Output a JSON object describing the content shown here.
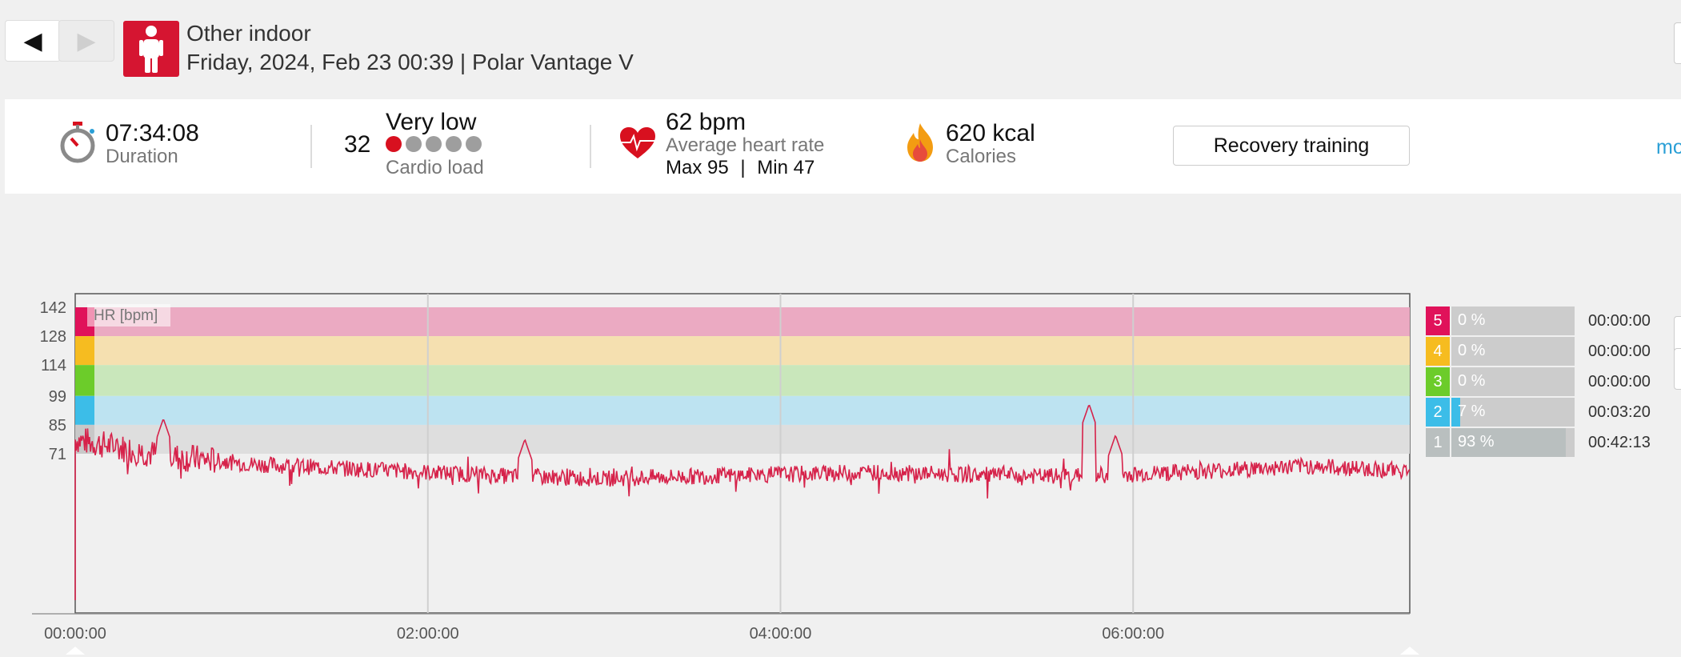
{
  "nav": {
    "prev_label": "◀",
    "next_label": "▶"
  },
  "header": {
    "title": "Other indoor",
    "subtitle": "Friday, 2024, Feb 23 00:39 | Polar Vantage V"
  },
  "summary": {
    "duration": {
      "value": "07:34:08",
      "label": "Duration"
    },
    "cardio": {
      "score": "32",
      "level": "Very low",
      "label": "Cardio load",
      "dots_filled": 1,
      "dots_total": 5
    },
    "heart_rate": {
      "value": "62 bpm",
      "label": "Average heart rate",
      "max": "Max 95",
      "sep": "|",
      "min": "Min 47"
    },
    "calories": {
      "value": "620 kcal",
      "label": "Calories"
    },
    "benefit_button": "Recovery training",
    "more_link": "mo"
  },
  "colors": {
    "accent": "#d51531",
    "hr_line": "#d6224a",
    "zone5": "#e0125a",
    "zone4": "#f6bc20",
    "zone3": "#6ccc2a",
    "zone2": "#3cbde8",
    "zone1": "#c8c8c8"
  },
  "chart_data": {
    "type": "line",
    "ylabel": "HR [bpm]",
    "x_ticks": [
      "00:00:00",
      "02:00:00",
      "04:00:00",
      "06:00:00"
    ],
    "x_range_seconds": [
      0,
      27248
    ],
    "y_ticks": [
      71,
      85,
      99,
      114,
      128,
      142
    ],
    "ylim": [
      0,
      142
    ],
    "zones": [
      {
        "zone": 5,
        "from": 128,
        "to": 142
      },
      {
        "zone": 4,
        "from": 114,
        "to": 128
      },
      {
        "zone": 3,
        "from": 99,
        "to": 114
      },
      {
        "zone": 2,
        "from": 85,
        "to": 99
      },
      {
        "zone": 1,
        "from": 71,
        "to": 85
      }
    ],
    "series": [
      {
        "values_hr_every_30min": [
          78,
          70,
          66,
          64,
          62,
          60,
          59,
          60,
          61,
          62,
          61,
          60,
          61,
          63,
          65,
          63
        ],
        "peaks": [
          [
            0.5,
            88
          ],
          [
            2.55,
            78
          ],
          [
            5.75,
            95
          ],
          [
            5.9,
            80
          ]
        ]
      }
    ]
  },
  "zone_summary": [
    {
      "zone": "5",
      "percent": "0 %",
      "fraction": 0,
      "time": "00:00:00"
    },
    {
      "zone": "4",
      "percent": "0 %",
      "fraction": 0,
      "time": "00:00:00"
    },
    {
      "zone": "3",
      "percent": "0 %",
      "fraction": 0,
      "time": "00:00:00"
    },
    {
      "zone": "2",
      "percent": "7 %",
      "fraction": 0.07,
      "time": "00:03:20"
    },
    {
      "zone": "1",
      "percent": "93 %",
      "fraction": 0.93,
      "time": "00:42:13"
    }
  ]
}
